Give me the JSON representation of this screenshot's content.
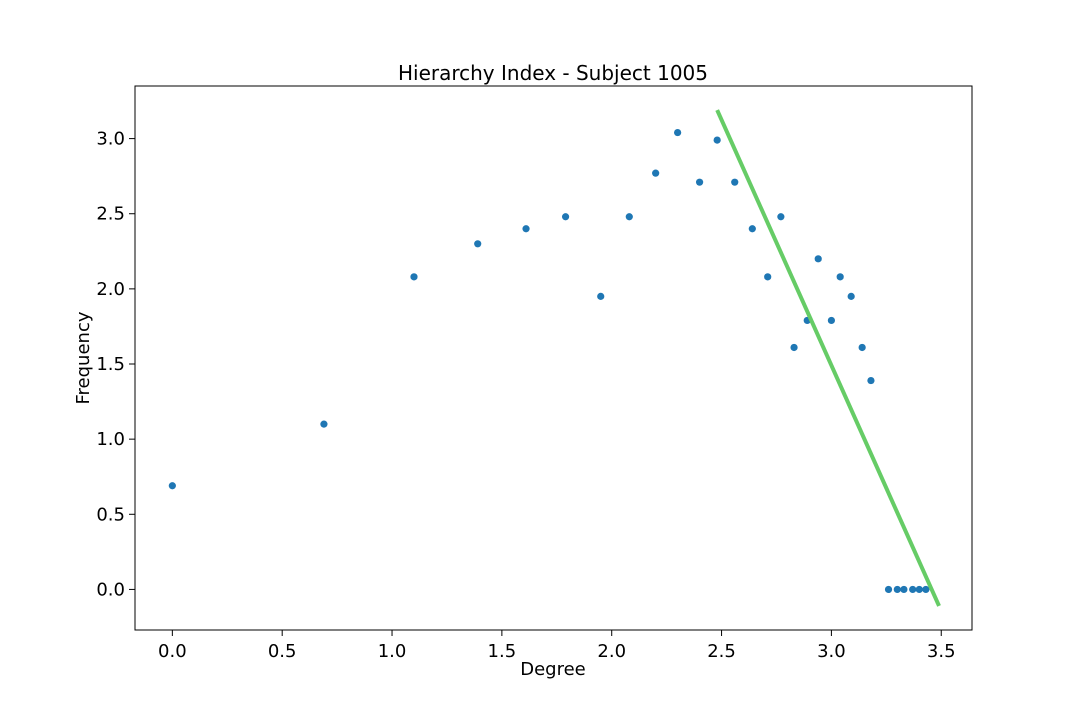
{
  "chart_data": {
    "type": "scatter",
    "title": "Hierarchy Index - Subject 1005",
    "xlabel": "Degree",
    "ylabel": "Frequency",
    "xlim": [
      -0.17,
      3.64
    ],
    "ylim": [
      -0.27,
      3.35
    ],
    "xticks": [
      0.0,
      0.5,
      1.0,
      1.5,
      2.0,
      2.5,
      3.0,
      3.5
    ],
    "xtick_labels": [
      "0.0",
      "0.5",
      "1.0",
      "1.5",
      "2.0",
      "2.5",
      "3.0",
      "3.5"
    ],
    "yticks": [
      0.0,
      0.5,
      1.0,
      1.5,
      2.0,
      2.5,
      3.0
    ],
    "ytick_labels": [
      "0.0",
      "0.5",
      "1.0",
      "1.5",
      "2.0",
      "2.5",
      "3.0"
    ],
    "grid": false,
    "series": [
      {
        "type": "scatter",
        "color": "#1f77b4",
        "points": [
          [
            0.0,
            0.69
          ],
          [
            0.69,
            1.1
          ],
          [
            1.1,
            2.08
          ],
          [
            1.39,
            2.3
          ],
          [
            1.61,
            2.4
          ],
          [
            1.79,
            2.48
          ],
          [
            1.95,
            1.95
          ],
          [
            2.08,
            2.48
          ],
          [
            2.2,
            2.77
          ],
          [
            2.3,
            3.04
          ],
          [
            2.4,
            2.71
          ],
          [
            2.48,
            2.99
          ],
          [
            2.56,
            2.71
          ],
          [
            2.64,
            2.4
          ],
          [
            2.71,
            2.08
          ],
          [
            2.77,
            2.48
          ],
          [
            2.83,
            1.61
          ],
          [
            2.89,
            1.79
          ],
          [
            2.94,
            2.2
          ],
          [
            3.0,
            1.79
          ],
          [
            3.04,
            2.08
          ],
          [
            3.09,
            1.95
          ],
          [
            3.14,
            1.61
          ],
          [
            3.18,
            1.39
          ],
          [
            3.26,
            0.0
          ],
          [
            3.3,
            0.0
          ],
          [
            3.33,
            0.0
          ],
          [
            3.37,
            0.0
          ],
          [
            3.4,
            0.0
          ],
          [
            3.43,
            0.0
          ]
        ]
      },
      {
        "type": "line",
        "color": "#66cc66",
        "points": [
          [
            2.48,
            3.19
          ],
          [
            3.49,
            -0.11
          ]
        ]
      }
    ]
  }
}
